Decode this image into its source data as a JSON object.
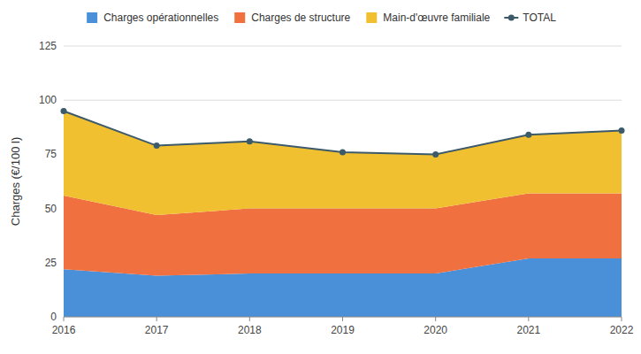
{
  "chart_data": {
    "type": "area",
    "stacked": true,
    "x": [
      2016,
      2017,
      2018,
      2019,
      2020,
      2021,
      2022
    ],
    "xlim": [
      2016,
      2022
    ],
    "xticks": [
      2016,
      2017,
      2018,
      2019,
      2020,
      2021,
      2022
    ],
    "ylabel": "Charges (€/100 l)",
    "ylim": [
      0,
      125
    ],
    "yticks": [
      0,
      25,
      50,
      75,
      100,
      125
    ],
    "grid": true,
    "legend": "top",
    "series": [
      {
        "name": "Charges opérationnelles",
        "type": "area",
        "color": "#4a90d9",
        "values": [
          22,
          19,
          20,
          20,
          20,
          27,
          27
        ]
      },
      {
        "name": "Charges de structure",
        "type": "area",
        "color": "#f07040",
        "values": [
          34,
          28,
          30,
          30,
          30,
          30,
          30
        ]
      },
      {
        "name": "Main-d'œuvre familiale",
        "type": "area",
        "color": "#f0c030",
        "values": [
          39,
          32,
          31,
          26,
          25,
          27,
          29
        ]
      },
      {
        "name": "TOTAL",
        "type": "line",
        "marker": "circle",
        "color": "#3d5a6a",
        "values": [
          95,
          79,
          81,
          76,
          75,
          84,
          86
        ]
      }
    ]
  }
}
